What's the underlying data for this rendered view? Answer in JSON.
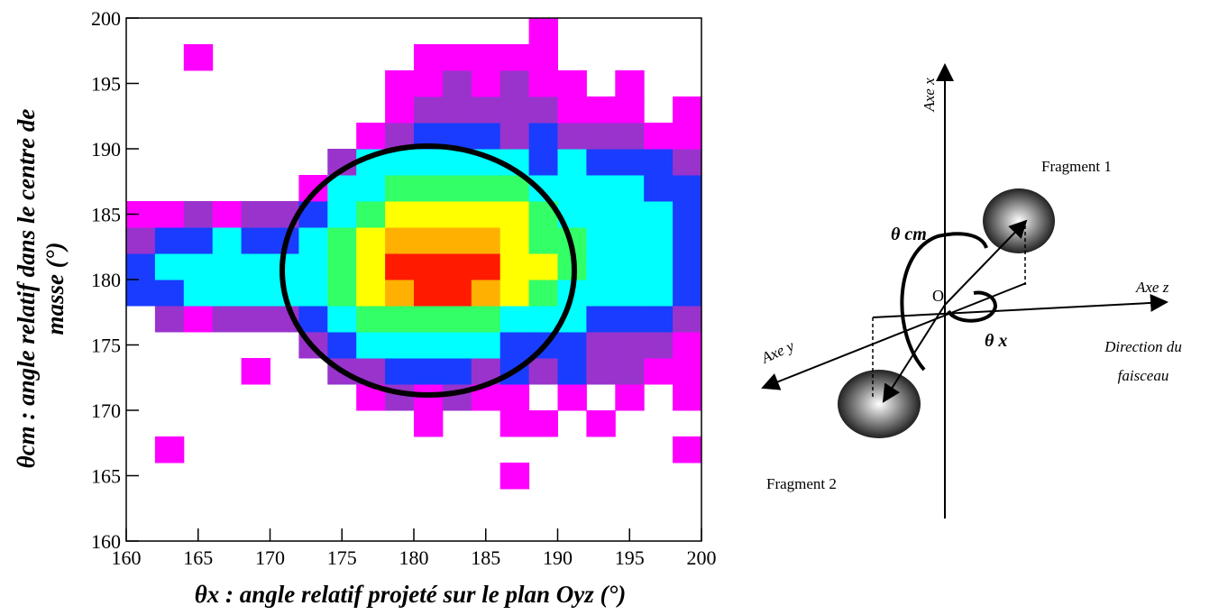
{
  "chart_data": {
    "type": "heatmap",
    "xlabel": "θx : angle relatif projeté sur le plan Oyz (°)",
    "ylabel": [
      "θcm : angle relatif dans le centre de",
      "masse (°)"
    ],
    "xlim": [
      160,
      200
    ],
    "ylim": [
      160,
      200
    ],
    "xticks": [
      160,
      165,
      170,
      175,
      180,
      185,
      190,
      195,
      200
    ],
    "yticks": [
      160,
      165,
      170,
      175,
      180,
      185,
      190,
      195,
      200
    ],
    "xbins": [
      160,
      162,
      164,
      166,
      168,
      170,
      172,
      174,
      176,
      178,
      180,
      182,
      184,
      186,
      188,
      190,
      192,
      194,
      196,
      198,
      200
    ],
    "ybins": [
      160,
      162,
      164,
      166,
      168,
      170,
      172,
      174,
      176,
      178,
      180,
      182,
      184,
      186,
      188,
      190,
      192,
      194,
      196,
      198,
      200
    ],
    "colors": [
      "#ff00ff",
      "#9933cc",
      "#1a3cff",
      "#00ffff",
      "#33ff66",
      "#ffff00",
      "#ffb000",
      "#ff1a00"
    ],
    "z": [
      [
        0,
        0,
        0,
        0,
        0,
        0,
        0,
        0,
        0,
        0,
        0,
        0,
        0,
        0,
        0,
        0,
        0,
        0,
        0,
        0
      ],
      [
        0,
        0,
        0,
        0,
        0,
        0,
        0,
        0,
        0,
        0,
        0,
        0,
        0,
        0,
        0,
        0,
        0,
        0,
        0,
        0
      ],
      [
        0,
        0,
        0,
        0,
        0,
        0,
        0,
        0,
        0,
        0,
        0,
        0,
        0,
        1,
        0,
        0,
        0,
        0,
        0,
        0
      ],
      [
        0,
        1,
        0,
        0,
        0,
        0,
        0,
        0,
        0,
        0,
        0,
        0,
        0,
        0,
        0,
        0,
        0,
        0,
        0,
        1
      ],
      [
        0,
        0,
        0,
        0,
        0,
        0,
        0,
        0,
        0,
        0,
        1,
        0,
        0,
        1,
        1,
        0,
        1,
        0,
        0,
        0
      ],
      [
        0,
        0,
        0,
        0,
        0,
        0,
        0,
        0,
        1,
        2,
        1,
        2,
        1,
        1,
        0,
        1,
        0,
        1,
        0,
        1
      ],
      [
        0,
        0,
        0,
        0,
        1,
        0,
        0,
        2,
        2,
        3,
        3,
        3,
        2,
        3,
        2,
        3,
        2,
        2,
        1,
        1
      ],
      [
        0,
        0,
        0,
        0,
        0,
        0,
        2,
        3,
        4,
        4,
        4,
        4,
        4,
        3,
        3,
        3,
        2,
        2,
        2,
        1
      ],
      [
        0,
        2,
        1,
        2,
        2,
        2,
        3,
        4,
        5,
        5,
        5,
        5,
        5,
        4,
        4,
        4,
        3,
        3,
        3,
        2
      ],
      [
        3,
        3,
        4,
        4,
        4,
        4,
        4,
        5,
        6,
        7,
        8,
        8,
        7,
        6,
        5,
        4,
        4,
        4,
        4,
        3
      ],
      [
        3,
        4,
        4,
        4,
        4,
        4,
        4,
        5,
        6,
        8,
        8,
        8,
        8,
        6,
        6,
        5,
        4,
        4,
        4,
        3
      ],
      [
        2,
        3,
        3,
        4,
        3,
        3,
        4,
        5,
        6,
        7,
        7,
        7,
        7,
        6,
        5,
        5,
        4,
        4,
        4,
        3
      ],
      [
        1,
        1,
        2,
        1,
        2,
        2,
        3,
        4,
        5,
        6,
        6,
        6,
        6,
        6,
        5,
        4,
        4,
        4,
        4,
        3
      ],
      [
        0,
        0,
        0,
        0,
        0,
        0,
        1,
        4,
        4,
        5,
        5,
        5,
        5,
        5,
        4,
        4,
        4,
        4,
        3,
        3
      ],
      [
        0,
        0,
        0,
        0,
        0,
        0,
        0,
        2,
        4,
        4,
        4,
        4,
        4,
        4,
        3,
        4,
        3,
        3,
        3,
        2
      ],
      [
        0,
        0,
        0,
        0,
        0,
        0,
        0,
        0,
        1,
        2,
        3,
        3,
        3,
        2,
        3,
        2,
        2,
        2,
        1,
        1
      ],
      [
        0,
        0,
        0,
        0,
        0,
        0,
        0,
        0,
        0,
        1,
        2,
        2,
        2,
        2,
        2,
        1,
        1,
        1,
        0,
        1
      ],
      [
        0,
        0,
        0,
        0,
        0,
        0,
        0,
        0,
        0,
        1,
        1,
        2,
        1,
        2,
        1,
        1,
        0,
        1,
        0,
        0
      ],
      [
        0,
        0,
        1,
        0,
        0,
        0,
        0,
        0,
        0,
        0,
        1,
        1,
        1,
        1,
        1,
        0,
        0,
        0,
        0,
        0
      ],
      [
        0,
        0,
        0,
        0,
        0,
        0,
        0,
        0,
        0,
        0,
        0,
        0,
        0,
        0,
        1,
        0,
        0,
        0,
        0,
        0
      ]
    ]
  },
  "diagram": {
    "axis_x": "Axe x",
    "axis_y": "Axe y",
    "axis_z": "Axe z",
    "origin": "O",
    "fragment1": "Fragment 1",
    "fragment2": "Fragment 2",
    "theta_cm": "θ cm",
    "theta_x": "θ x",
    "beam": [
      "Direction du",
      "faisceau"
    ]
  }
}
